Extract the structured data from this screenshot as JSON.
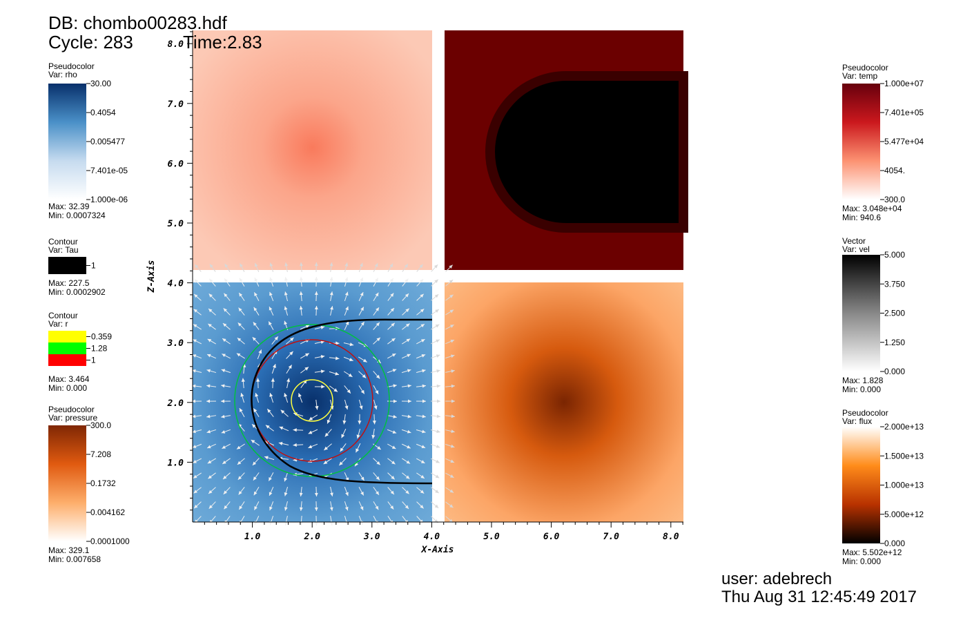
{
  "header": {
    "db": "DB: chombo00283.hdf",
    "cycle": "Cycle: 283",
    "time": "Time:2.83"
  },
  "footer": {
    "user": "user: adebrech",
    "date": "Thu Aug 31 12:45:49 2017"
  },
  "axes": {
    "x": {
      "title": "X-Axis",
      "ticks": [
        "1.0",
        "2.0",
        "3.0",
        "4.0",
        "5.0",
        "6.0",
        "7.0",
        "8.0"
      ]
    },
    "z": {
      "title": "Z-Axis",
      "ticks": [
        "1.0",
        "2.0",
        "3.0",
        "4.0",
        "5.0",
        "6.0",
        "7.0",
        "8.0"
      ]
    }
  },
  "legends": [
    {
      "kind": "Pseudocolor",
      "var": "Var: rho",
      "colors": [
        "#08306b",
        "#4a90c8",
        "#c6dbef",
        "#ffffff"
      ],
      "labels": [
        "30.00",
        "0.4054",
        "0.005477",
        "7.401e-05",
        "1.000e-06"
      ],
      "max": "Max:  32.39",
      "min": "Min:  0.0007324"
    },
    {
      "kind": "Contour",
      "var": "Var: Tau",
      "colors": [
        "#000000"
      ],
      "labels": [
        "1"
      ],
      "max": "Max:  227.5",
      "min": "Min:  0.0002902"
    },
    {
      "kind": "Contour",
      "var": "Var: r",
      "colors": [
        "#ffff00",
        "#00ff00",
        "#ff0000"
      ],
      "labels": [
        "0.359",
        "1.28",
        "1"
      ],
      "max": "Max:  3.464",
      "min": "Min:  0.000"
    },
    {
      "kind": "Pseudocolor",
      "var": "Var: pressure",
      "colors": [
        "#7f2704",
        "#e05a10",
        "#fdae6b",
        "#ffffff"
      ],
      "labels": [
        "300.0",
        "7.208",
        "0.1732",
        "0.004162",
        "0.0001000"
      ],
      "max": "Max:  329.1",
      "min": "Min:  0.007658"
    },
    {
      "kind": "Pseudocolor",
      "var": "Var: temp",
      "colors": [
        "#67000d",
        "#cb181d",
        "#fc9272",
        "#ffffff"
      ],
      "labels": [
        "1.000e+07",
        "7.401e+05",
        "5.477e+04",
        "4054.",
        "300.0"
      ],
      "max": "Max:  3.048e+04",
      "min": "Min:  940.6"
    },
    {
      "kind": "Vector",
      "var": "Var: vel",
      "colors": [
        "#000000",
        "#888888",
        "#ffffff"
      ],
      "labels": [
        "5.000",
        "3.750",
        "2.500",
        "1.250",
        "0.000"
      ],
      "max": "Max:  1.828",
      "min": "Min:  0.000"
    },
    {
      "kind": "Pseudocolor",
      "var": "Var: flux",
      "colors": [
        "#ffffff",
        "#ff8c1a",
        "#b83200",
        "#000000"
      ],
      "labels": [
        "2.000e+13",
        "1.500e+13",
        "1.000e+13",
        "5.000e+12",
        "0.000"
      ],
      "max": "Max:  5.502e+12",
      "min": "Min:  0.000"
    }
  ]
}
